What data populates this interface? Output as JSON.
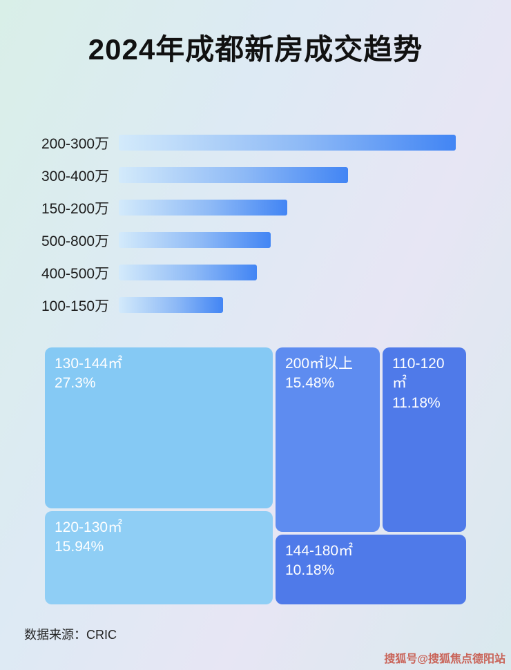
{
  "page": {
    "title": "2024年成都新房成交趋势",
    "source_note": "数据来源：CRIC",
    "watermark": "搜狐号@搜狐焦点德阳站"
  },
  "colors": {
    "bar_gradient_start": "#d3eafb",
    "bar_gradient_end": "#4285f4",
    "treemap_light_blue": "#85c9f4",
    "treemap_lighter_blue": "#8fcef5",
    "treemap_medium_blue": "#5e8cf0",
    "treemap_dark_blue": "#4f7ae9",
    "title_color": "#111111",
    "watermark_color": "#c65548"
  },
  "chart_data": [
    {
      "type": "bar",
      "orientation": "horizontal",
      "title": "2024年成都新房成交趋势",
      "categories": [
        "200-300万",
        "300-400万",
        "150-200万",
        "500-800万",
        "400-500万",
        "100-150万"
      ],
      "values": [
        100,
        68,
        50,
        45,
        41,
        31
      ],
      "values_unit": "relative length (no numeric labels shown; longest bar = 100)",
      "xlabel": "",
      "ylabel": "",
      "grid": false,
      "legend": false
    },
    {
      "type": "treemap",
      "items": [
        {
          "label": "130-144㎡",
          "percent": "27.3%",
          "value": 27.3
        },
        {
          "label": "200㎡以上",
          "percent": "15.48%",
          "value": 15.48
        },
        {
          "label": "110-120㎡",
          "percent": "11.18%",
          "value": 11.18
        },
        {
          "label": "120-130㎡",
          "percent": "15.94%",
          "value": 15.94
        },
        {
          "label": "144-180㎡",
          "percent": "10.18%",
          "value": 10.18
        }
      ]
    }
  ]
}
